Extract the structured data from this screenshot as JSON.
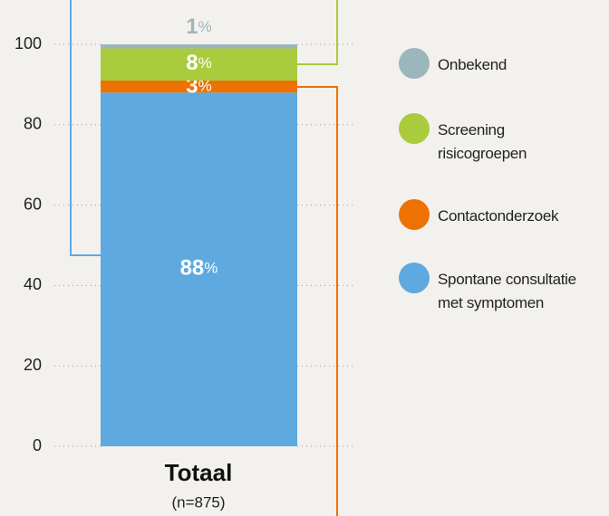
{
  "chart_data": {
    "type": "stacked_bar",
    "categories": [
      "Totaal"
    ],
    "category_note": "(n=875)",
    "series": [
      {
        "name": "Spontane consultatie\nmet symptomen",
        "color": "#5ea9df",
        "values": [
          88
        ],
        "value_labels": [
          "88%"
        ]
      },
      {
        "name": "Contactonderzoek",
        "color": "#ee7203",
        "values": [
          3
        ],
        "value_labels": [
          "3%"
        ]
      },
      {
        "name": "Screening\nrisicogroepen",
        "color": "#a9cb3d",
        "values": [
          8
        ],
        "value_labels": [
          "8%"
        ]
      },
      {
        "name": "Onbekend",
        "color": "#9cb6bd",
        "values": [
          1
        ],
        "value_labels": [
          "1%"
        ]
      }
    ],
    "ylim": [
      0,
      100
    ],
    "yticks": [
      0,
      20,
      40,
      60,
      80,
      100
    ],
    "grid": true
  }
}
